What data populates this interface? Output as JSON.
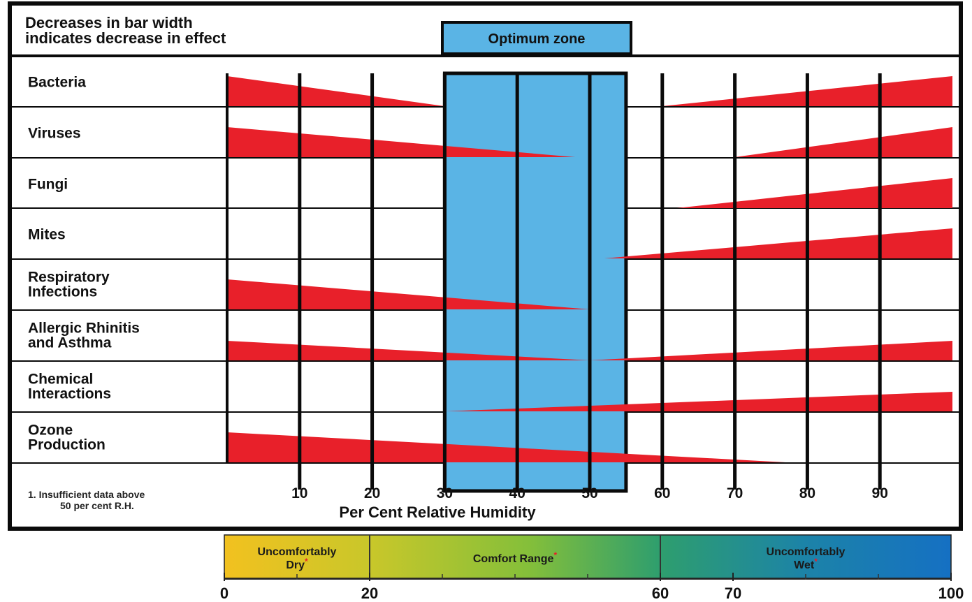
{
  "header": {
    "note_line1": "Decreases in bar width",
    "note_line2": "indicates decrease in effect",
    "optimum_label": "Optimum zone"
  },
  "footnote": {
    "line1": "1.  Insufficient data above",
    "line2": "50 per cent R.H."
  },
  "colors": {
    "effect_fill": "#e8202a",
    "optimum_fill": "#5ab4e5",
    "frame": "#0a0a0a"
  },
  "chart_data": [
    {
      "type": "area",
      "title": "",
      "xlabel": "Per Cent Relative Humidity",
      "xlim": [
        0,
        100
      ],
      "x_ticks": [
        10,
        20,
        30,
        40,
        50,
        60,
        70,
        80,
        90
      ],
      "optimum_zone": [
        30,
        55
      ],
      "series": [
        {
          "name": "Bacteria",
          "label_lines": [
            "Bacteria"
          ],
          "segments": [
            {
              "x": [
                0,
                30
              ],
              "w": [
                0.95,
                0.0
              ]
            },
            {
              "x": [
                60,
                100
              ],
              "w": [
                0.0,
                0.95
              ]
            }
          ]
        },
        {
          "name": "Viruses",
          "label_lines": [
            "Viruses"
          ],
          "segments": [
            {
              "x": [
                0,
                48
              ],
              "w": [
                0.95,
                0.0
              ]
            },
            {
              "x": [
                70,
                100
              ],
              "w": [
                0.0,
                0.95
              ]
            }
          ]
        },
        {
          "name": "Fungi",
          "label_lines": [
            "Fungi"
          ],
          "segments": [
            {
              "x": [
                62,
                100
              ],
              "w": [
                0.0,
                0.95
              ]
            }
          ]
        },
        {
          "name": "Mites",
          "label_lines": [
            "Mites"
          ],
          "segments": [
            {
              "x": [
                52,
                100
              ],
              "w": [
                0.0,
                0.95
              ]
            }
          ]
        },
        {
          "name": "Respiratory Infections",
          "label_lines": [
            "Respiratory",
            "Infections"
          ],
          "segments": [
            {
              "x": [
                0,
                50
              ],
              "w": [
                0.95,
                0.0
              ]
            }
          ]
        },
        {
          "name": "Allergic Rhinitis and Asthma",
          "label_lines": [
            "Allergic Rhinitis",
            "and Asthma"
          ],
          "segments": [
            {
              "x": [
                0,
                50
              ],
              "w": [
                0.62,
                0.0
              ]
            },
            {
              "x": [
                50,
                100
              ],
              "w": [
                0.0,
                0.62
              ]
            }
          ]
        },
        {
          "name": "Chemical Interactions",
          "label_lines": [
            "Chemical",
            "Interactions"
          ],
          "segments": [
            {
              "x": [
                30,
                100
              ],
              "w": [
                0.0,
                0.62
              ]
            }
          ]
        },
        {
          "name": "Ozone Production",
          "label_lines": [
            "Ozone",
            "Production"
          ],
          "segments": [
            {
              "x": [
                0,
                77
              ],
              "w": [
                0.95,
                0.0
              ]
            }
          ]
        }
      ]
    },
    {
      "type": "bar",
      "title": "",
      "xlim": [
        0,
        100
      ],
      "tick_labels": [
        "0",
        "20",
        "60",
        "70",
        "100"
      ],
      "tick_label_values": [
        0,
        20,
        60,
        70,
        100
      ],
      "minor_ticks": [
        10,
        30,
        40,
        50,
        80,
        90
      ],
      "ranges": [
        {
          "name": "Uncomfortably Dry",
          "lines": [
            "Uncomfortably",
            "Dry"
          ],
          "start": 0,
          "end": 20
        },
        {
          "name": "Comfort Range",
          "lines": [
            "Comfort Range"
          ],
          "start": 20,
          "end": 60
        },
        {
          "name": "Uncomfortably Wet",
          "lines": [
            "Uncomfortably",
            "Wet"
          ],
          "start": 60,
          "end": 100
        }
      ],
      "marker": "*"
    }
  ]
}
